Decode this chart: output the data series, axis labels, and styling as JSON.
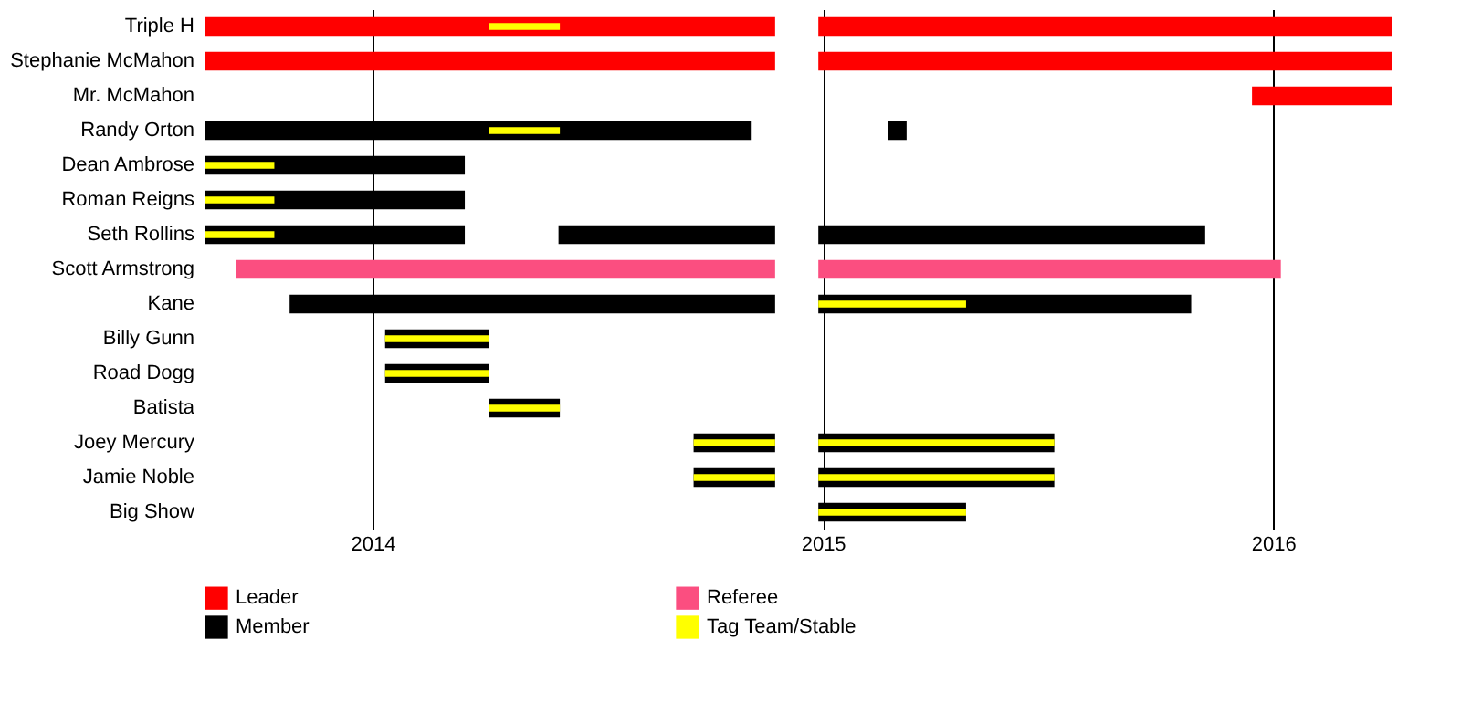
{
  "chart_data": {
    "type": "bar",
    "orientation": "horizontal",
    "categories": [
      "Triple H",
      "Stephanie McMahon",
      "Mr. McMahon",
      "Randy Orton",
      "Dean Ambrose",
      "Roman Reigns",
      "Seth Rollins",
      "Scott Armstrong",
      "Kane",
      "Billy Gunn",
      "Road Dogg",
      "Batista",
      "Joey Mercury",
      "Jamie Noble",
      "Big Show"
    ],
    "xlim": [
      2013.627,
      2016.263
    ],
    "xticks": [
      2014,
      2015,
      2016
    ],
    "grid": "x",
    "legend": "bottom",
    "series": [
      {
        "name": "Leader",
        "color": "#ff0000",
        "values": [
          1.267,
          1.267,
          null,
          null,
          null,
          null,
          null,
          null,
          null,
          null,
          null,
          null,
          null,
          null,
          null
        ],
        "base": [
          2013.627,
          2013.627,
          null,
          null,
          null,
          null,
          null,
          null,
          null,
          null,
          null,
          null,
          null,
          null,
          null
        ]
      },
      {
        "color": "#ff0000",
        "values": [
          1.273,
          1.273,
          0.31,
          null,
          null,
          null,
          null,
          null,
          null,
          null,
          null,
          null,
          null,
          null,
          null
        ],
        "base": [
          2014.99,
          2014.99,
          2015.953,
          null,
          null,
          null,
          null,
          null,
          null,
          null,
          null,
          null,
          null,
          null,
          null
        ]
      },
      {
        "name": "Member",
        "color": "#000000",
        "values": [
          null,
          null,
          null,
          1.213,
          0.578,
          0.578,
          0.578,
          null,
          1.078,
          0.231,
          0.231,
          0.157,
          0.181,
          0.181,
          null
        ],
        "base": [
          null,
          null,
          null,
          2013.627,
          2013.627,
          2013.627,
          2013.627,
          null,
          2013.816,
          2014.028,
          2014.028,
          2014.259,
          2014.713,
          2014.713,
          null
        ]
      },
      {
        "color": "#000000",
        "values": [
          null,
          null,
          null,
          0.042,
          null,
          null,
          0.481,
          null,
          0.828,
          null,
          null,
          null,
          0.524,
          0.524,
          0.328
        ],
        "base": [
          null,
          null,
          null,
          2015.144,
          null,
          null,
          2014.413,
          null,
          2014.99,
          null,
          null,
          null,
          2014.99,
          2014.99,
          2014.99
        ]
      },
      {
        "color": "#000000",
        "values": [
          null,
          null,
          null,
          null,
          null,
          null,
          0.859,
          null,
          null,
          null,
          null,
          null,
          null,
          null,
          null
        ],
        "base": [
          null,
          null,
          null,
          null,
          null,
          null,
          2014.99,
          null,
          null,
          null,
          null,
          null,
          null,
          null,
          null
        ]
      },
      {
        "name": "Referee",
        "color": "#fb4e80",
        "values": [
          null,
          null,
          null,
          null,
          null,
          null,
          null,
          1.197,
          null,
          null,
          null,
          null,
          null,
          null,
          null
        ],
        "base": [
          null,
          null,
          null,
          null,
          null,
          null,
          null,
          2013.697,
          null,
          null,
          null,
          null,
          null,
          null,
          null
        ]
      },
      {
        "color": "#fb4e80",
        "values": [
          null,
          null,
          null,
          null,
          null,
          null,
          null,
          1.027,
          null,
          null,
          null,
          null,
          null,
          null,
          null
        ],
        "base": [
          null,
          null,
          null,
          null,
          null,
          null,
          null,
          2014.99,
          null,
          null,
          null,
          null,
          null,
          null,
          null
        ]
      },
      {
        "name": "Tag Team/Stable",
        "color": "#ffff00",
        "values": [
          0.157,
          null,
          null,
          0.157,
          0.155,
          0.155,
          0.155,
          null,
          null,
          0.231,
          0.231,
          0.157,
          0.181,
          0.181,
          null
        ],
        "base": [
          2014.259,
          null,
          null,
          2014.259,
          2013.627,
          2013.627,
          2013.627,
          null,
          null,
          2014.028,
          2014.028,
          2014.259,
          2014.713,
          2014.713,
          null
        ]
      },
      {
        "color": "#ffff00",
        "values": [
          null,
          null,
          null,
          null,
          null,
          null,
          null,
          null,
          0.328,
          null,
          null,
          null,
          0.524,
          0.524,
          0.328
        ],
        "base": [
          null,
          null,
          null,
          null,
          null,
          null,
          null,
          null,
          2014.99,
          null,
          null,
          null,
          2014.99,
          2014.99,
          2014.99
        ]
      }
    ]
  }
}
